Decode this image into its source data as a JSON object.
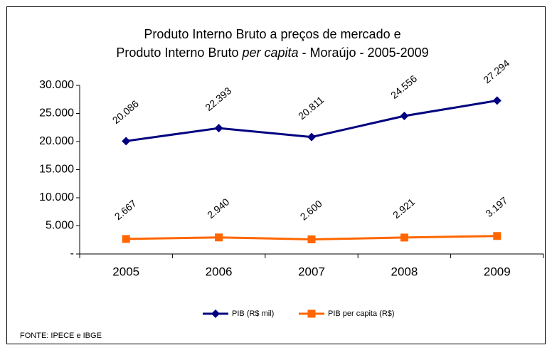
{
  "chart_data": {
    "type": "line",
    "title": [
      "Produto Interno Bruto a preços de mercado  e",
      [
        "Produto Interno Bruto ",
        "per capita",
        " -   Moraújo - 2005-2009"
      ]
    ],
    "categories": [
      "2005",
      "2006",
      "2007",
      "2008",
      "2009"
    ],
    "series": [
      {
        "name": "PIB (R$ mil)",
        "color": "#000080",
        "marker": "diamond",
        "values": [
          20086,
          22393,
          20811,
          24556,
          27294
        ],
        "value_labels": [
          "20.086",
          "22.393",
          "20.811",
          "24.556",
          "27.294"
        ]
      },
      {
        "name": "PIB per capita (R$)",
        "color": "#ff6600",
        "marker": "square",
        "values": [
          2667,
          2940,
          2600,
          2921,
          3197
        ],
        "value_labels": [
          "2.667",
          "2.940",
          "2.600",
          "2.921",
          "3.197"
        ]
      }
    ],
    "ylim": [
      0,
      30000
    ],
    "yticks": [
      {
        "value": 0,
        "label": "-"
      },
      {
        "value": 5000,
        "label": "5.000"
      },
      {
        "value": 10000,
        "label": "10.000"
      },
      {
        "value": 15000,
        "label": "15.000"
      },
      {
        "value": 20000,
        "label": "20.000"
      },
      {
        "value": 25000,
        "label": "25.000"
      },
      {
        "value": 30000,
        "label": "30.000"
      }
    ],
    "legend": "bottom",
    "source": "FONTE: IPECE e IBGE"
  }
}
